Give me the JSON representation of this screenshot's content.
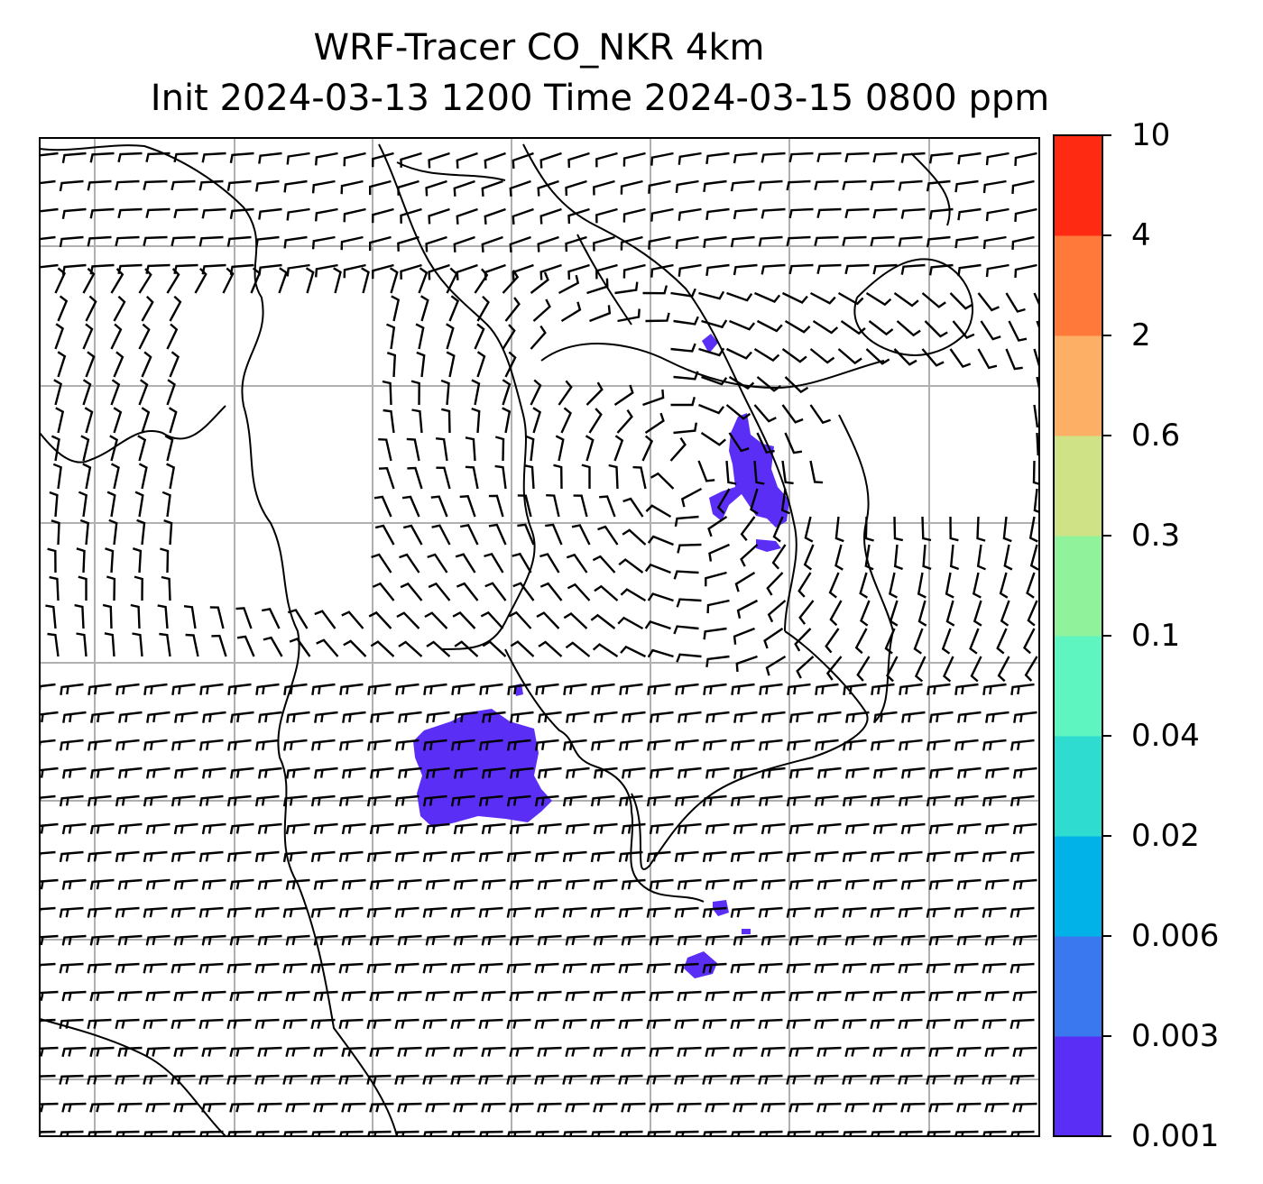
{
  "title": {
    "line1": "WRF-Tracer CO_NKR 4km",
    "line2": "Init 2024-03-13 1200 Time 2024-03-15 0800 ppm"
  },
  "colorbar": {
    "levels": [
      "0.001",
      "0.003",
      "0.006",
      "0.02",
      "0.04",
      "0.1",
      "0.3",
      "0.6",
      "2",
      "4",
      "10"
    ],
    "colors": [
      "#5b2ef5",
      "#3a78f0",
      "#00b2e8",
      "#2fdcd0",
      "#5ef5c0",
      "#90f39c",
      "#cfe286",
      "#fdb065",
      "#ff7a3a",
      "#ff2a12"
    ]
  },
  "legend_markers": {
    "wind_barb": "wind-barb",
    "calm_marker": "calm-circle"
  },
  "plume_color": "#5b2ef5",
  "grid_color": "#b0b0b0"
}
